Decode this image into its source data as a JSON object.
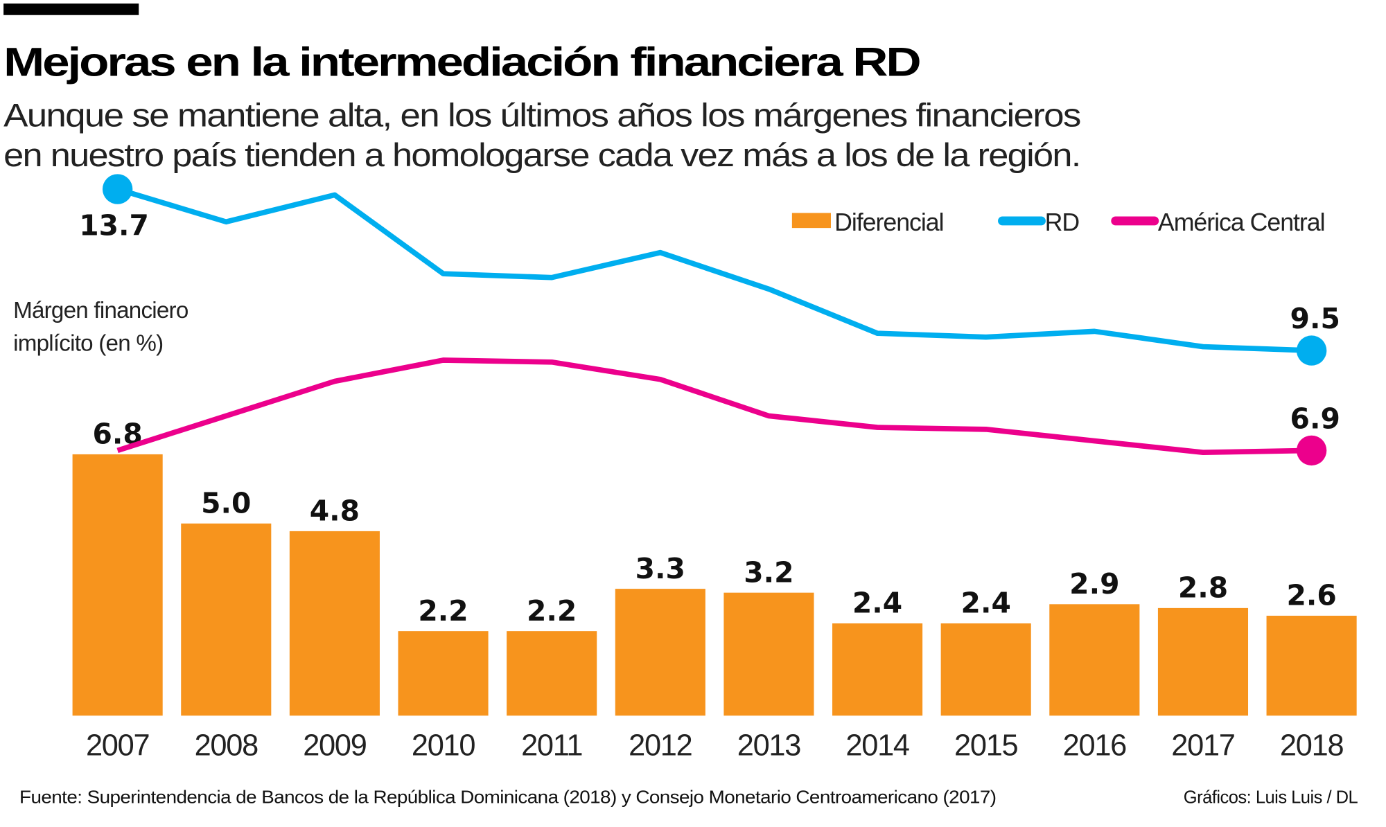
{
  "header": {
    "title": "Mejoras en la intermediación financiera RD",
    "subtitle_line1": "Aunque se mantiene alta, en los últimos años los márgenes financieros",
    "subtitle_line2": "en nuestro país tienden a homologarse cada vez más a los de la región."
  },
  "footer": {
    "source": "Fuente: Superintendencia de Bancos de la República Dominicana (2018) y Consejo Monetario Centroamericano (2017)",
    "credit": "Gráficos: Luis Luis / DL"
  },
  "chart_data": {
    "type": "bar",
    "ylabel_line1": "Márgen financiero",
    "ylabel_line2": "implícito (en %)",
    "ylim": [
      0,
      14
    ],
    "grid": false,
    "legend_position": "top-right",
    "categories": [
      "2007",
      "2008",
      "2009",
      "2010",
      "2011",
      "2012",
      "2013",
      "2014",
      "2015",
      "2016",
      "2017",
      "2018"
    ],
    "series": [
      {
        "name": "Diferencial",
        "kind": "bar",
        "color": "#f7941d",
        "values": [
          6.8,
          5.0,
          4.8,
          2.2,
          2.2,
          3.3,
          3.2,
          2.4,
          2.4,
          2.9,
          2.8,
          2.6
        ],
        "labels": [
          "6.8",
          "5.0",
          "4.8",
          "2.2",
          "2.2",
          "3.3",
          "3.2",
          "2.4",
          "2.4",
          "2.9",
          "2.8",
          "2.6"
        ]
      },
      {
        "name": "RD",
        "kind": "line",
        "color": "#00aeef",
        "values": [
          13.7,
          12.85,
          13.55,
          11.5,
          11.4,
          12.05,
          11.1,
          9.95,
          9.85,
          10.0,
          9.6,
          9.5
        ],
        "end_labels": [
          "13.7",
          "9.5"
        ]
      },
      {
        "name": "América Central",
        "kind": "line",
        "color": "#ec008c",
        "values": [
          6.9,
          7.8,
          8.7,
          9.25,
          9.2,
          8.75,
          7.8,
          7.5,
          7.45,
          7.15,
          6.85,
          6.9
        ],
        "end_labels": [
          "",
          "6.9"
        ]
      }
    ]
  }
}
